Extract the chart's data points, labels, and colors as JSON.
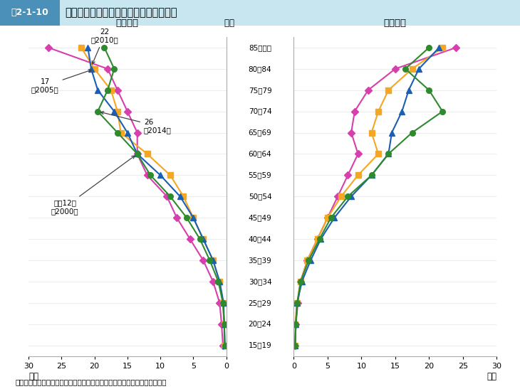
{
  "title_label": "図2-1-10",
  "title_text": "年齢階層別の基幹的農業従事者数の推移",
  "title_bg_color": "#c8e6f0",
  "title_label_bg": "#4a90b8",
  "age_labels": [
    "85歳以上",
    "80～84",
    "75～79",
    "70～74",
    "65～69",
    "60～64",
    "55～59",
    "50～54",
    "45～49",
    "40～44",
    "35～39",
    "30～34",
    "25～29",
    "20～24",
    "15～19"
  ],
  "year_keys": [
    "2000",
    "2005",
    "2010",
    "2014"
  ],
  "colors": [
    "#d63fad",
    "#f5a623",
    "#1a5fb4",
    "#2d8a2d"
  ],
  "markers": [
    "D",
    "s",
    "^",
    "o"
  ],
  "male_data": {
    "2000": [
      27.0,
      18.0,
      16.5,
      15.0,
      13.5,
      13.5,
      12.0,
      9.0,
      7.5,
      5.5,
      3.5,
      2.0,
      1.0,
      0.7,
      0.5
    ],
    "2005": [
      22.0,
      20.0,
      17.5,
      16.5,
      16.0,
      12.0,
      8.5,
      6.5,
      5.0,
      3.5,
      2.0,
      1.0,
      0.5,
      0.3,
      0.3
    ],
    "2010": [
      21.0,
      20.5,
      19.5,
      17.0,
      15.0,
      13.5,
      10.0,
      7.0,
      5.0,
      3.5,
      2.0,
      1.0,
      0.4,
      0.3,
      0.2
    ],
    "2014": [
      18.5,
      17.0,
      18.0,
      19.5,
      16.5,
      13.5,
      11.5,
      8.5,
      6.0,
      4.0,
      2.5,
      1.2,
      0.5,
      0.3,
      0.2
    ]
  },
  "female_data": {
    "2000": [
      24.0,
      15.0,
      11.0,
      9.0,
      8.5,
      9.5,
      8.0,
      6.5,
      5.0,
      3.5,
      2.0,
      1.0,
      0.6,
      0.3,
      0.2
    ],
    "2005": [
      22.0,
      17.5,
      14.0,
      12.5,
      11.5,
      12.5,
      9.5,
      7.0,
      5.0,
      3.5,
      2.0,
      1.0,
      0.5,
      0.2,
      0.2
    ],
    "2010": [
      21.5,
      18.5,
      17.0,
      16.0,
      14.5,
      14.0,
      11.5,
      8.5,
      6.0,
      4.0,
      2.5,
      1.2,
      0.5,
      0.3,
      0.2
    ],
    "2014": [
      20.0,
      16.5,
      20.0,
      22.0,
      17.5,
      14.0,
      11.5,
      8.0,
      5.5,
      3.8,
      2.2,
      1.0,
      0.5,
      0.3,
      0.2
    ]
  },
  "note": "資料：農林水産省「農林業センサス」、「農業構造動態調査」（組替集計）"
}
